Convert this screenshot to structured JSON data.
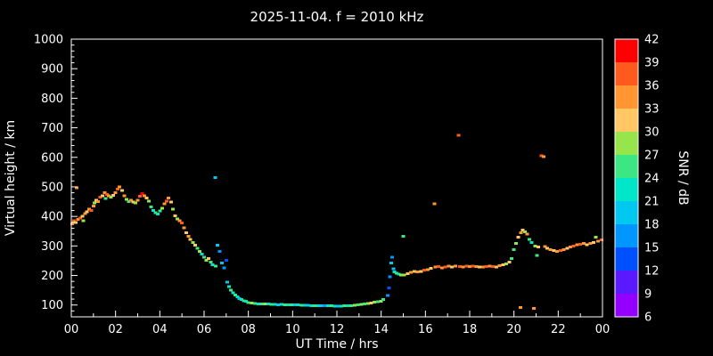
{
  "colors": {
    "background": "#000000",
    "foreground": "#ffffff"
  },
  "chart_data": {
    "type": "scatter",
    "title": "2025-11-04. f = 2010 kHz",
    "xlabel": "UT Time / hrs",
    "ylabel": "Virtual height / km",
    "colorbar_label": "SNR / dB",
    "xlim": [
      0,
      24
    ],
    "ylim": [
      60,
      1000
    ],
    "x_ticks": {
      "values": [
        0,
        2,
        4,
        6,
        8,
        10,
        12,
        14,
        16,
        18,
        20,
        22,
        24
      ],
      "labels": [
        "00",
        "02",
        "04",
        "06",
        "08",
        "10",
        "12",
        "14",
        "16",
        "18",
        "20",
        "22",
        "00"
      ],
      "minor_step": 1
    },
    "y_ticks": {
      "values": [
        100,
        200,
        300,
        400,
        500,
        600,
        700,
        800,
        900,
        1000
      ],
      "minor_step": 20
    },
    "colorbar": {
      "min": 6,
      "max": 42,
      "ticks": [
        6,
        9,
        12,
        15,
        18,
        21,
        24,
        27,
        30,
        33,
        36,
        39,
        42
      ],
      "segments": [
        {
          "from": 6,
          "to": 9,
          "color": "#9400ff"
        },
        {
          "from": 9,
          "to": 12,
          "color": "#5a1aff"
        },
        {
          "from": 12,
          "to": 15,
          "color": "#0050ff"
        },
        {
          "from": 15,
          "to": 18,
          "color": "#0096ff"
        },
        {
          "from": 18,
          "to": 21,
          "color": "#00c8f0"
        },
        {
          "from": 21,
          "to": 24,
          "color": "#00e6c8"
        },
        {
          "from": 24,
          "to": 27,
          "color": "#3ce682"
        },
        {
          "from": 27,
          "to": 30,
          "color": "#96e64b"
        },
        {
          "from": 30,
          "to": 33,
          "color": "#ffc864"
        },
        {
          "from": 33,
          "to": 36,
          "color": "#ff9632"
        },
        {
          "from": 36,
          "to": 39,
          "color": "#ff5a1e"
        },
        {
          "from": 39,
          "to": 42,
          "color": "#ff0000"
        }
      ]
    },
    "points": [
      [
        0.05,
        375,
        33
      ],
      [
        0.12,
        385,
        36
      ],
      [
        0.2,
        380,
        30
      ],
      [
        0.25,
        497,
        33
      ],
      [
        0.3,
        390,
        33
      ],
      [
        0.4,
        395,
        36
      ],
      [
        0.5,
        400,
        30
      ],
      [
        0.55,
        385,
        27
      ],
      [
        0.62,
        410,
        33
      ],
      [
        0.7,
        415,
        30
      ],
      [
        0.8,
        425,
        33
      ],
      [
        0.9,
        420,
        36
      ],
      [
        1.0,
        435,
        33
      ],
      [
        1.05,
        445,
        27
      ],
      [
        1.12,
        455,
        30
      ],
      [
        1.2,
        450,
        33
      ],
      [
        1.3,
        465,
        36
      ],
      [
        1.4,
        470,
        30
      ],
      [
        1.5,
        480,
        33
      ],
      [
        1.55,
        460,
        24
      ],
      [
        1.62,
        475,
        36
      ],
      [
        1.7,
        470,
        33
      ],
      [
        1.8,
        465,
        27
      ],
      [
        1.9,
        472,
        30
      ],
      [
        2.0,
        480,
        33
      ],
      [
        2.1,
        492,
        36
      ],
      [
        2.18,
        500,
        33
      ],
      [
        2.3,
        488,
        30
      ],
      [
        2.4,
        470,
        33
      ],
      [
        2.5,
        458,
        27
      ],
      [
        2.6,
        450,
        24
      ],
      [
        2.7,
        455,
        33
      ],
      [
        2.8,
        448,
        30
      ],
      [
        2.9,
        445,
        27
      ],
      [
        3.0,
        455,
        33
      ],
      [
        3.1,
        468,
        36
      ],
      [
        3.2,
        478,
        39
      ],
      [
        3.3,
        470,
        33
      ],
      [
        3.4,
        462,
        30
      ],
      [
        3.5,
        452,
        27
      ],
      [
        3.6,
        432,
        24
      ],
      [
        3.7,
        420,
        21
      ],
      [
        3.8,
        412,
        24
      ],
      [
        3.9,
        408,
        21
      ],
      [
        4.0,
        418,
        24
      ],
      [
        4.1,
        428,
        27
      ],
      [
        4.2,
        442,
        33
      ],
      [
        4.3,
        452,
        36
      ],
      [
        4.38,
        462,
        33
      ],
      [
        4.5,
        448,
        30
      ],
      [
        4.6,
        425,
        27
      ],
      [
        4.7,
        402,
        30
      ],
      [
        4.8,
        392,
        27
      ],
      [
        4.9,
        385,
        33
      ],
      [
        5.0,
        378,
        36
      ],
      [
        5.1,
        362,
        33
      ],
      [
        5.2,
        345,
        30
      ],
      [
        5.3,
        332,
        33
      ],
      [
        5.38,
        322,
        30
      ],
      [
        5.5,
        312,
        27
      ],
      [
        5.6,
        302,
        30
      ],
      [
        5.7,
        292,
        24
      ],
      [
        5.8,
        282,
        27
      ],
      [
        5.9,
        272,
        21
      ],
      [
        6.0,
        262,
        24
      ],
      [
        6.1,
        252,
        27
      ],
      [
        6.2,
        258,
        30
      ],
      [
        6.3,
        246,
        24
      ],
      [
        6.38,
        236,
        21
      ],
      [
        6.5,
        532,
        18
      ],
      [
        6.52,
        232,
        24
      ],
      [
        6.6,
        302,
        18
      ],
      [
        6.7,
        282,
        15
      ],
      [
        6.8,
        242,
        18
      ],
      [
        6.9,
        225,
        15
      ],
      [
        7.0,
        252,
        12
      ],
      [
        7.05,
        178,
        18
      ],
      [
        7.12,
        162,
        21
      ],
      [
        7.2,
        150,
        24
      ],
      [
        7.3,
        142,
        21
      ],
      [
        7.4,
        134,
        24
      ],
      [
        7.5,
        128,
        21
      ],
      [
        7.6,
        122,
        18
      ],
      [
        7.7,
        118,
        21
      ],
      [
        7.8,
        114,
        24
      ],
      [
        7.9,
        112,
        21
      ],
      [
        8.0,
        108,
        24
      ],
      [
        8.15,
        106,
        27
      ],
      [
        8.3,
        105,
        24
      ],
      [
        8.45,
        104,
        21
      ],
      [
        8.6,
        104,
        24
      ],
      [
        8.75,
        103,
        27
      ],
      [
        8.9,
        103,
        21
      ],
      [
        9.05,
        102,
        24
      ],
      [
        9.2,
        102,
        21
      ],
      [
        9.35,
        101,
        18
      ],
      [
        9.5,
        102,
        21
      ],
      [
        9.65,
        101,
        24
      ],
      [
        9.8,
        100,
        21
      ],
      [
        9.95,
        100,
        24
      ],
      [
        10.1,
        100,
        18
      ],
      [
        10.25,
        100,
        21
      ],
      [
        10.4,
        99,
        24
      ],
      [
        10.55,
        99,
        21
      ],
      [
        10.7,
        99,
        18
      ],
      [
        10.85,
        98,
        21
      ],
      [
        11.0,
        98,
        24
      ],
      [
        11.15,
        98,
        21
      ],
      [
        11.3,
        97,
        18
      ],
      [
        11.45,
        97,
        15
      ],
      [
        11.6,
        97,
        21
      ],
      [
        11.75,
        97,
        24
      ],
      [
        11.9,
        96,
        21
      ],
      [
        12.05,
        96,
        18
      ],
      [
        12.2,
        96,
        21
      ],
      [
        12.35,
        97,
        24
      ],
      [
        12.5,
        97,
        21
      ],
      [
        12.65,
        98,
        24
      ],
      [
        12.8,
        99,
        27
      ],
      [
        12.95,
        100,
        24
      ],
      [
        13.1,
        102,
        27
      ],
      [
        13.25,
        103,
        24
      ],
      [
        13.4,
        105,
        27
      ],
      [
        13.55,
        107,
        30
      ],
      [
        13.7,
        109,
        27
      ],
      [
        13.85,
        111,
        24
      ],
      [
        14.0,
        113,
        27
      ],
      [
        14.1,
        118,
        24
      ],
      [
        14.3,
        132,
        15
      ],
      [
        14.35,
        158,
        12
      ],
      [
        14.4,
        196,
        15
      ],
      [
        14.45,
        242,
        18
      ],
      [
        14.5,
        262,
        15
      ],
      [
        14.55,
        222,
        18
      ],
      [
        14.6,
        212,
        21
      ],
      [
        14.7,
        208,
        24
      ],
      [
        14.8,
        204,
        21
      ],
      [
        14.9,
        202,
        27
      ],
      [
        15.0,
        332,
        24
      ],
      [
        15.05,
        202,
        27
      ],
      [
        15.2,
        206,
        30
      ],
      [
        15.35,
        210,
        33
      ],
      [
        15.5,
        214,
        30
      ],
      [
        15.65,
        212,
        33
      ],
      [
        15.8,
        214,
        30
      ],
      [
        15.95,
        218,
        36
      ],
      [
        16.1,
        220,
        33
      ],
      [
        16.25,
        224,
        30
      ],
      [
        16.4,
        442,
        33
      ],
      [
        16.45,
        228,
        33
      ],
      [
        16.6,
        230,
        36
      ],
      [
        16.75,
        226,
        33
      ],
      [
        16.9,
        229,
        36
      ],
      [
        17.05,
        231,
        33
      ],
      [
        17.2,
        229,
        30
      ],
      [
        17.35,
        232,
        33
      ],
      [
        17.5,
        675,
        36
      ],
      [
        17.55,
        230,
        36
      ],
      [
        17.7,
        229,
        33
      ],
      [
        17.85,
        231,
        36
      ],
      [
        18.0,
        230,
        33
      ],
      [
        18.15,
        232,
        36
      ],
      [
        18.3,
        230,
        33
      ],
      [
        18.45,
        229,
        30
      ],
      [
        18.6,
        228,
        33
      ],
      [
        18.75,
        230,
        36
      ],
      [
        18.9,
        231,
        33
      ],
      [
        19.05,
        230,
        36
      ],
      [
        19.2,
        229,
        30
      ],
      [
        19.35,
        233,
        33
      ],
      [
        19.5,
        236,
        30
      ],
      [
        19.65,
        240,
        27
      ],
      [
        19.8,
        246,
        30
      ],
      [
        19.9,
        258,
        24
      ],
      [
        20.0,
        288,
        24
      ],
      [
        20.1,
        308,
        27
      ],
      [
        20.2,
        330,
        30
      ],
      [
        20.3,
        92,
        33
      ],
      [
        20.32,
        344,
        33
      ],
      [
        20.4,
        354,
        30
      ],
      [
        20.5,
        348,
        27
      ],
      [
        20.6,
        340,
        33
      ],
      [
        20.7,
        322,
        24
      ],
      [
        20.8,
        312,
        21
      ],
      [
        20.9,
        88,
        33
      ],
      [
        20.95,
        300,
        27
      ],
      [
        21.05,
        268,
        24
      ],
      [
        21.1,
        296,
        30
      ],
      [
        21.25,
        605,
        36
      ],
      [
        21.35,
        603,
        33
      ],
      [
        21.4,
        298,
        33
      ],
      [
        21.5,
        292,
        30
      ],
      [
        21.65,
        288,
        33
      ],
      [
        21.8,
        284,
        30
      ],
      [
        21.95,
        282,
        33
      ],
      [
        22.1,
        284,
        36
      ],
      [
        22.25,
        288,
        33
      ],
      [
        22.4,
        292,
        30
      ],
      [
        22.55,
        296,
        33
      ],
      [
        22.7,
        300,
        36
      ],
      [
        22.85,
        304,
        33
      ],
      [
        23.0,
        306,
        36
      ],
      [
        23.15,
        308,
        33
      ],
      [
        23.3,
        304,
        30
      ],
      [
        23.45,
        308,
        33
      ],
      [
        23.6,
        312,
        30
      ],
      [
        23.7,
        330,
        27
      ],
      [
        23.8,
        316,
        33
      ],
      [
        23.95,
        320,
        36
      ]
    ]
  }
}
